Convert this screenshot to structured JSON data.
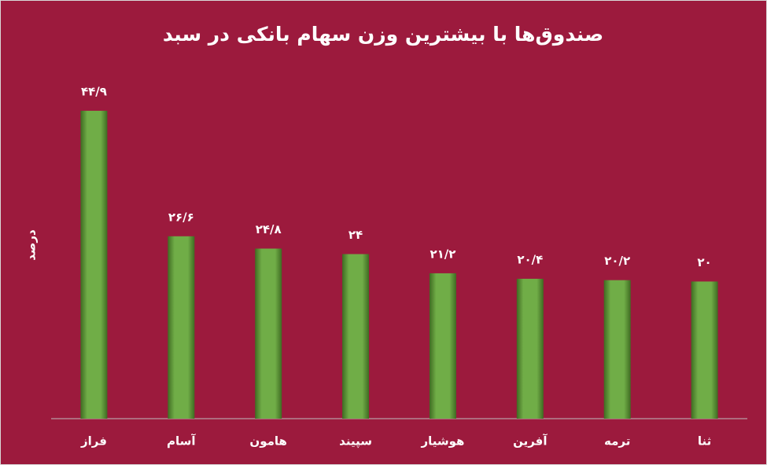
{
  "chart_data": {
    "type": "bar",
    "title": "صندوق‌ها با بیشترین وزن سهام بانکی در سبد",
    "y_label": "درصد",
    "categories": [
      "فراز",
      "آسام",
      "هامون",
      "سپیند",
      "هوشیار",
      "آفرین",
      "ترمه",
      "ثنا"
    ],
    "values": [
      44.9,
      26.6,
      24.8,
      24,
      21.2,
      20.4,
      20.2,
      20
    ],
    "value_labels": [
      "۴۴/۹",
      "۲۶/۶",
      "۲۴/۸",
      "۲۴",
      "۲۱/۲",
      "۲۰/۴",
      "۲۰/۲",
      "۲۰"
    ],
    "color": "#70ad47"
  }
}
